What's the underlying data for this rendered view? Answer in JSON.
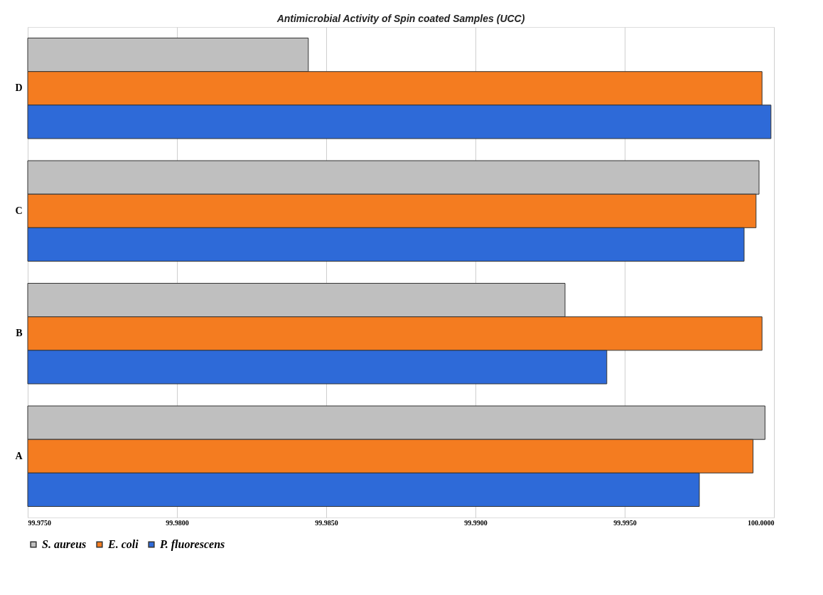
{
  "chart_data": {
    "type": "bar",
    "orientation": "horizontal",
    "title": "Antimicrobial Activity of Spin coated Samples (UCC)",
    "categories": [
      "D",
      "C",
      "B",
      "A"
    ],
    "series": [
      {
        "name": "S. aureus",
        "color": "#bfbfbf",
        "values": [
          99.9844,
          99.9995,
          99.993,
          99.9997
        ]
      },
      {
        "name": "E. coli",
        "color": "#f47c20",
        "values": [
          99.9996,
          99.9994,
          99.9996,
          99.9993
        ]
      },
      {
        "name": "P. fluorescens",
        "color": "#2e6ad8",
        "values": [
          99.9999,
          99.999,
          99.9944,
          99.9975
        ]
      }
    ],
    "xlim": [
      99.975,
      100.0
    ],
    "xticks": [
      {
        "value": 99.975,
        "label": "99.9750"
      },
      {
        "value": 99.98,
        "label": "99.9800"
      },
      {
        "value": 99.985,
        "label": "99.9850"
      },
      {
        "value": 99.99,
        "label": "99.9900"
      },
      {
        "value": 99.995,
        "label": "99.9950"
      },
      {
        "value": 100.0,
        "label": "100.0000"
      }
    ],
    "grid": "x",
    "legend": "bottom"
  }
}
